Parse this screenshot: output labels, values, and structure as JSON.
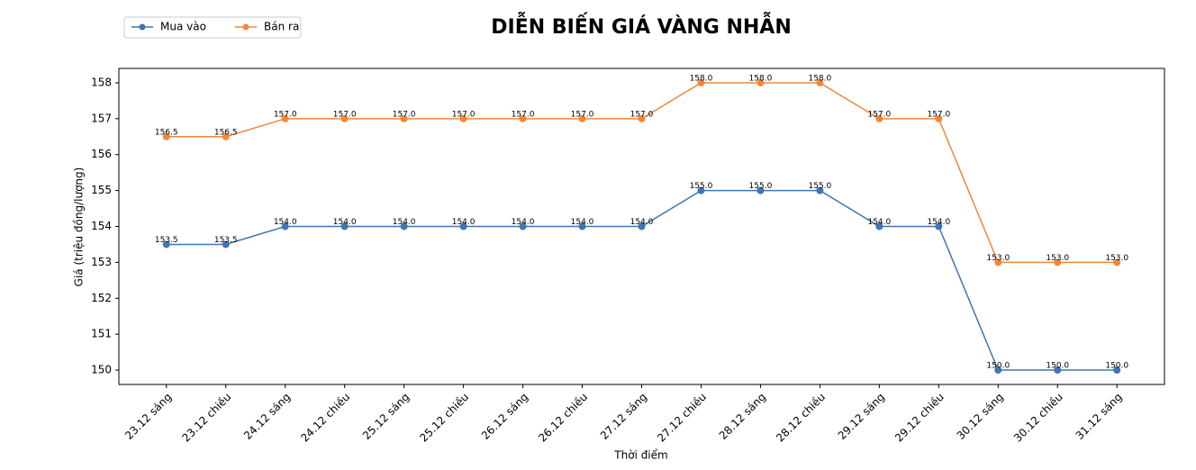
{
  "chart_data": {
    "type": "line",
    "title": "DIỄN BIẾN GIÁ VÀNG NHẪN",
    "x_label": "Thời điểm",
    "y_label": "Giá (triệu đồng/lượng)",
    "categories": [
      "23.12 sáng",
      "23.12 chiều",
      "24.12 sáng",
      "24.12 chiều",
      "25.12 sáng",
      "25.12 chiều",
      "26.12 sáng",
      "26.12 chiều",
      "27.12 sáng",
      "27.12 chiều",
      "28.12 sáng",
      "28.12 chiều",
      "29.12 sáng",
      "29.12 chiều",
      "30.12 sáng",
      "30.12 chiều",
      "31.12 sáng"
    ],
    "series": [
      {
        "name": "Mua vào",
        "color": "#3f76b0",
        "values": [
          153.5,
          153.5,
          154,
          154,
          154,
          154,
          154,
          154,
          154,
          155,
          155,
          155,
          154,
          154,
          150,
          150,
          150
        ],
        "value_labels": [
          "153.5",
          "153.5",
          "154.0",
          "154.0",
          "154.0",
          "154.0",
          "154.0",
          "154.0",
          "154.0",
          "155.0",
          "155.0",
          "155.0",
          "154.0",
          "154.0",
          "150.0",
          "150.0",
          "150.0"
        ]
      },
      {
        "name": "Bán ra",
        "color": "#f0883a",
        "values": [
          156.5,
          156.5,
          157,
          157,
          157,
          157,
          157,
          157,
          157,
          158,
          158,
          158,
          157,
          157,
          153,
          153,
          153
        ],
        "value_labels": [
          "156.5",
          "156.5",
          "157.0",
          "157.0",
          "157.0",
          "157.0",
          "157.0",
          "157.0",
          "157.0",
          "158.0",
          "158.0",
          "158.0",
          "157.0",
          "157.0",
          "153.0",
          "153.0",
          "153.0"
        ]
      }
    ],
    "ylim": [
      149.6,
      158.4
    ],
    "yticks": [
      150,
      151,
      152,
      153,
      154,
      155,
      156,
      157,
      158
    ],
    "grid": false
  }
}
